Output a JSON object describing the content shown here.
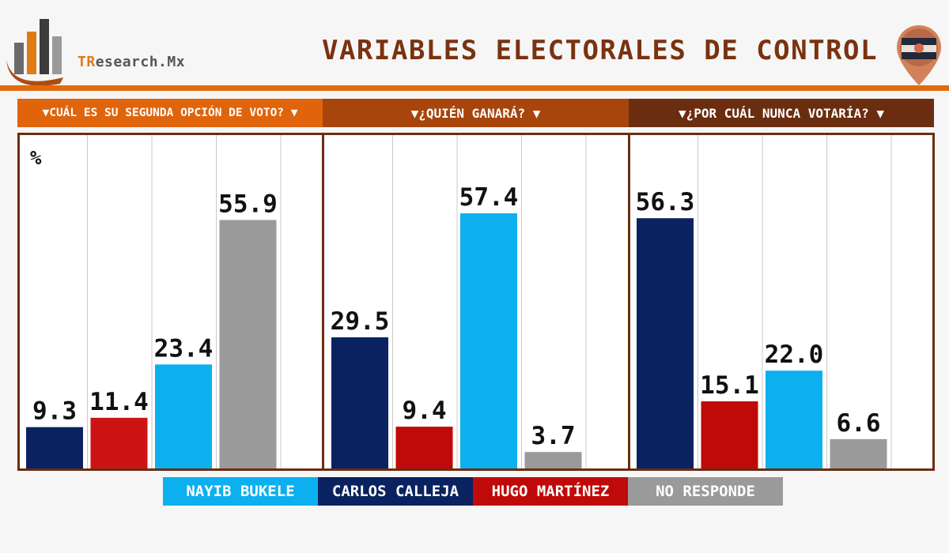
{
  "header": {
    "logo_text_highlight": "TR",
    "logo_text_rest": "esearch.Mx",
    "title": "VARIABLES ELECTORALES DE CONTROL"
  },
  "colors": {
    "rule": "#e06b0e",
    "panel_border": "#6b2d10",
    "title": "#7a3210"
  },
  "unit_label": "%",
  "chart_data": [
    {
      "type": "bar",
      "title": "▼CUÁL ES SU SEGUNDA OPCIÓN DE VOTO? ▼",
      "header_color": "#e0640c",
      "ylim": [
        0,
        75
      ],
      "series": [
        {
          "name": "CARLOS CALLEJA",
          "color": "#0a2260",
          "value": 9.3,
          "label": "9.3"
        },
        {
          "name": "HUGO MARTÍNEZ",
          "color": "#cc1414",
          "value": 11.4,
          "label": "11.4"
        },
        {
          "name": "NAYIB BUKELE",
          "color": "#0cb0ef",
          "value": 23.4,
          "label": "23.4"
        },
        {
          "name": "NO RESPONDE",
          "color": "#9a9a9a",
          "value": 55.9,
          "label": "55.9"
        }
      ]
    },
    {
      "type": "bar",
      "title": "▼¿QUIÉN GANARÁ? ▼",
      "header_color": "#a8450c",
      "ylim": [
        0,
        75
      ],
      "series": [
        {
          "name": "CARLOS CALLEJA",
          "color": "#0a2260",
          "value": 29.5,
          "label": "29.5"
        },
        {
          "name": "HUGO MARTÍNEZ",
          "color": "#c00a0a",
          "value": 9.4,
          "label": "9.4"
        },
        {
          "name": "NAYIB BUKELE",
          "color": "#0cb0ef",
          "value": 57.4,
          "label": "57.4"
        },
        {
          "name": "NO RESPONDE",
          "color": "#9a9a9a",
          "value": 3.7,
          "label": "3.7"
        }
      ]
    },
    {
      "type": "bar",
      "title": "▼¿POR CUÁL NUNCA VOTARÍA? ▼",
      "header_color": "#6b2d10",
      "ylim": [
        0,
        75
      ],
      "series": [
        {
          "name": "CARLOS CALLEJA",
          "color": "#0a2260",
          "value": 56.3,
          "label": "56.3"
        },
        {
          "name": "HUGO MARTÍNEZ",
          "color": "#c00a0a",
          "value": 15.1,
          "label": "15.1"
        },
        {
          "name": "NAYIB BUKELE",
          "color": "#0cb0ef",
          "value": 22.0,
          "label": "22.0"
        },
        {
          "name": "NO RESPONDE",
          "color": "#9a9a9a",
          "value": 6.6,
          "label": "6.6"
        }
      ]
    }
  ],
  "legend": [
    {
      "label": "NAYIB BUKELE",
      "color": "#0cb0ef"
    },
    {
      "label": "CARLOS CALLEJA",
      "color": "#0a2260"
    },
    {
      "label": "HUGO MARTÍNEZ",
      "color": "#c00a0a"
    },
    {
      "label": "NO RESPONDE",
      "color": "#9a9a9a"
    }
  ]
}
